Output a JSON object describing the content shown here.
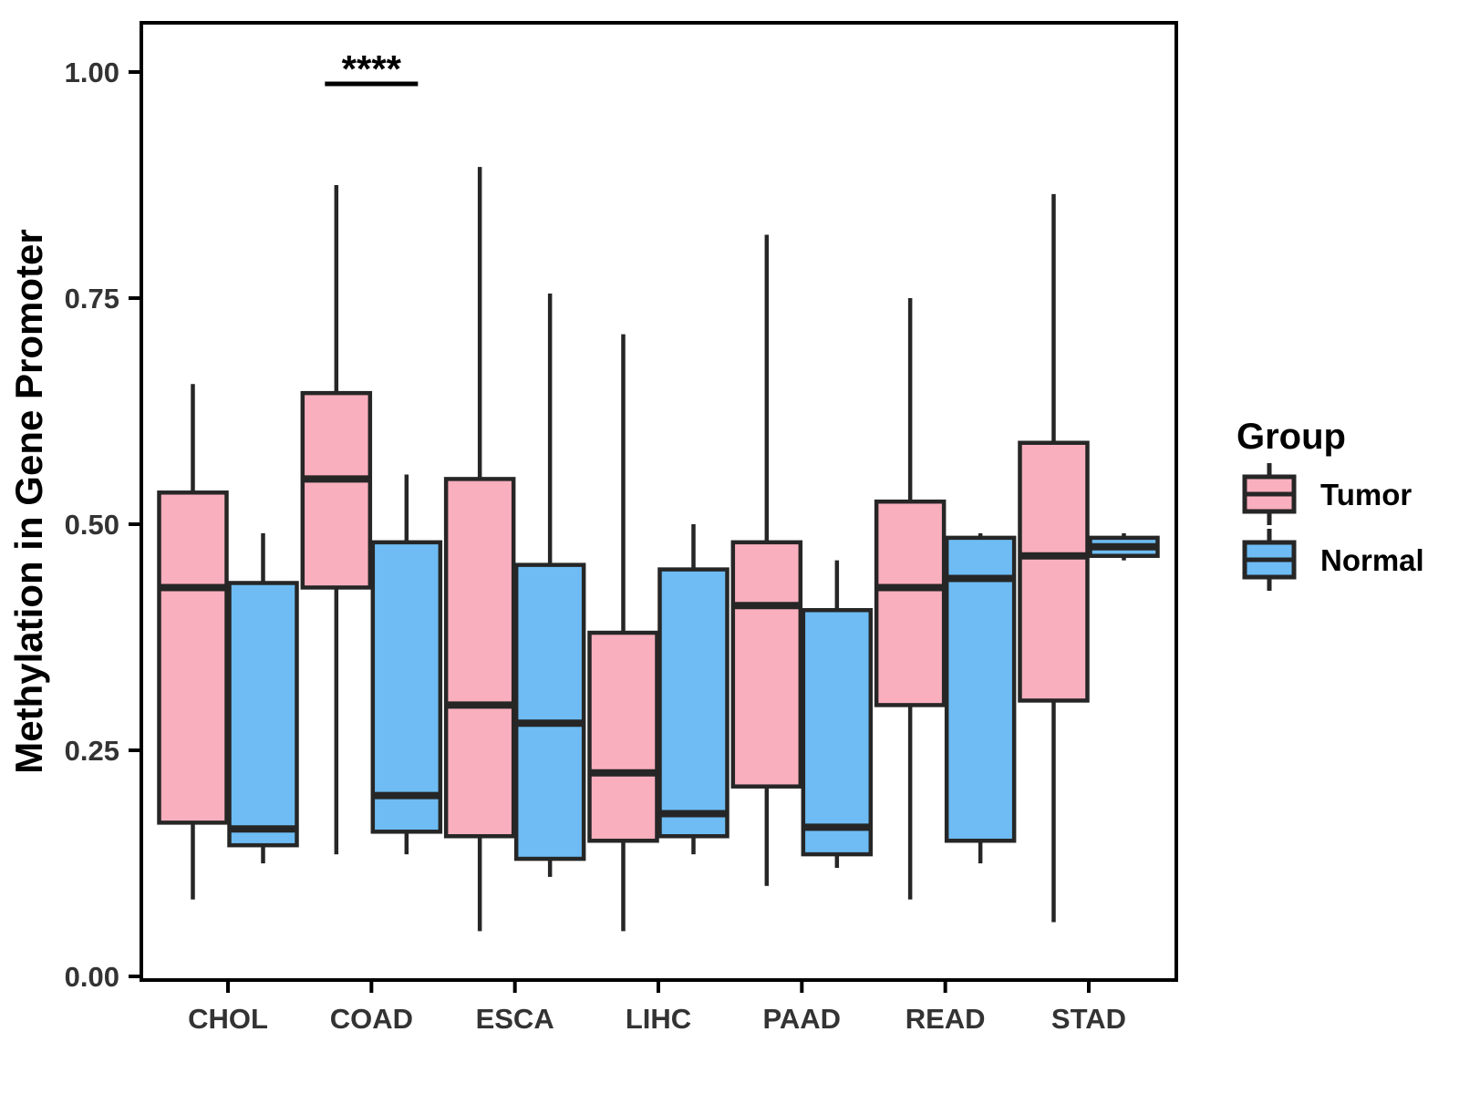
{
  "chart_data": {
    "type": "boxplot",
    "title": "",
    "xlabel": "",
    "ylabel": "Methylation in Gene Promoter",
    "ylim": [
      0,
      1.05
    ],
    "grid": false,
    "panel_border": true,
    "yticks": [
      0,
      0.25,
      0.5,
      0.75,
      1.0
    ],
    "ytick_labels": [
      "0.00",
      "0.25",
      "0.50",
      "0.75",
      "1.00"
    ],
    "categories": [
      "CHOL",
      "COAD",
      "ESCA",
      "LIHC",
      "PAAD",
      "READ",
      "STAD"
    ],
    "groups": [
      {
        "name": "Tumor",
        "fill": "#FAAFBE"
      },
      {
        "name": "Normal",
        "fill": "#6EBCF3"
      }
    ],
    "box_outline": "#262626",
    "axis_color": "#000000",
    "series": [
      {
        "group": "Tumor",
        "boxes": [
          {
            "category": "CHOL",
            "min": 0.085,
            "q1": 0.17,
            "median": 0.43,
            "q3": 0.535,
            "max": 0.655
          },
          {
            "category": "COAD",
            "min": 0.135,
            "q1": 0.43,
            "median": 0.55,
            "q3": 0.645,
            "max": 0.875
          },
          {
            "category": "ESCA",
            "min": 0.05,
            "q1": 0.155,
            "median": 0.3,
            "q3": 0.55,
            "max": 0.895
          },
          {
            "category": "LIHC",
            "min": 0.05,
            "q1": 0.15,
            "median": 0.225,
            "q3": 0.38,
            "max": 0.71
          },
          {
            "category": "PAAD",
            "min": 0.1,
            "q1": 0.21,
            "median": 0.41,
            "q3": 0.48,
            "max": 0.82
          },
          {
            "category": "READ",
            "min": 0.085,
            "q1": 0.3,
            "median": 0.43,
            "q3": 0.525,
            "max": 0.75
          },
          {
            "category": "STAD",
            "min": 0.06,
            "q1": 0.305,
            "median": 0.465,
            "q3": 0.59,
            "max": 0.865
          }
        ]
      },
      {
        "group": "Normal",
        "boxes": [
          {
            "category": "CHOL",
            "min": 0.125,
            "q1": 0.145,
            "median": 0.163,
            "q3": 0.435,
            "max": 0.49
          },
          {
            "category": "COAD",
            "min": 0.135,
            "q1": 0.16,
            "median": 0.2,
            "q3": 0.48,
            "max": 0.555
          },
          {
            "category": "ESCA",
            "min": 0.11,
            "q1": 0.13,
            "median": 0.28,
            "q3": 0.455,
            "max": 0.755
          },
          {
            "category": "LIHC",
            "min": 0.135,
            "q1": 0.155,
            "median": 0.18,
            "q3": 0.45,
            "max": 0.5
          },
          {
            "category": "PAAD",
            "min": 0.12,
            "q1": 0.135,
            "median": 0.165,
            "q3": 0.405,
            "max": 0.46
          },
          {
            "category": "READ",
            "min": 0.125,
            "q1": 0.15,
            "median": 0.44,
            "q3": 0.485,
            "max": 0.49
          },
          {
            "category": "STAD",
            "min": 0.46,
            "q1": 0.465,
            "median": 0.475,
            "q3": 0.485,
            "max": 0.49
          }
        ]
      }
    ],
    "annotation": {
      "label": "****",
      "category": "COAD"
    },
    "legend": {
      "title": "Group",
      "position": "right",
      "entries": [
        "Tumor",
        "Normal"
      ]
    }
  }
}
